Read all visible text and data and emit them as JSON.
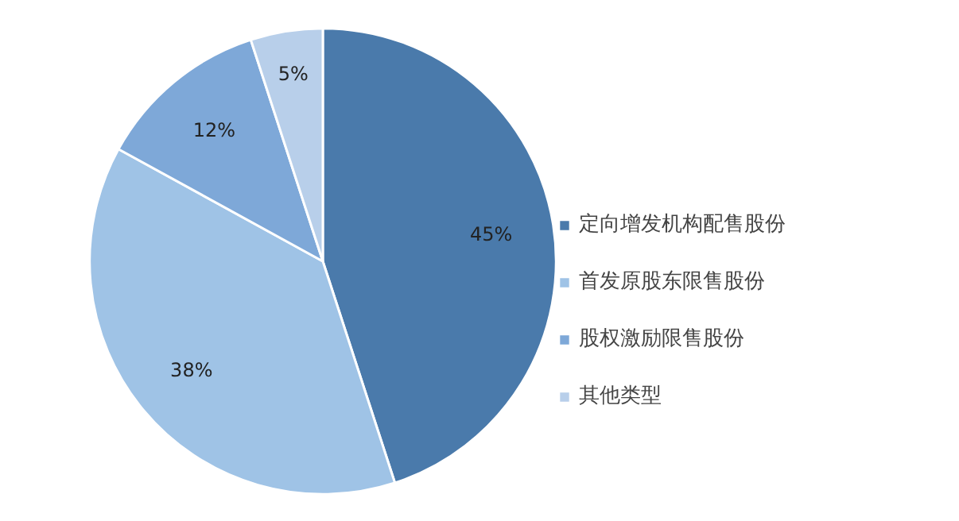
{
  "chart_data": {
    "type": "pie",
    "categories": [
      "定向增发机构配售股份",
      "首发原股东限售股份",
      "股权激励限售股份",
      "其他类型"
    ],
    "values": [
      45,
      38,
      12,
      5
    ],
    "colors": [
      "#4a7aab",
      "#9fc3e6",
      "#7ea8d8",
      "#b8cfea"
    ],
    "value_labels": [
      "45%",
      "38%",
      "12%",
      "5%"
    ],
    "legend": "right"
  }
}
